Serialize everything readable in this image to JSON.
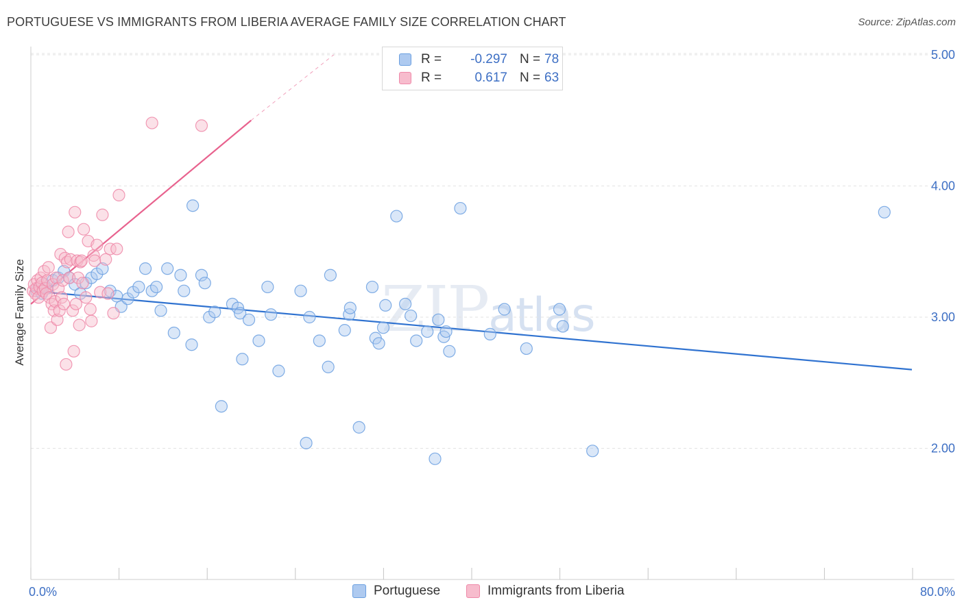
{
  "chart_data": {
    "type": "scatter",
    "title": "PORTUGUESE VS IMMIGRANTS FROM LIBERIA AVERAGE FAMILY SIZE CORRELATION CHART",
    "source": "Source: ZipAtlas.com",
    "ylabel": "Average Family Size",
    "xlabel": "",
    "xlim": [
      0,
      0.8
    ],
    "ylim": [
      1.0,
      5.15
    ],
    "x_tick_labels": [
      "0.0%",
      "80.0%"
    ],
    "y_ticks": [
      2.0,
      3.0,
      4.0,
      5.0
    ],
    "y_tick_labels": [
      "2.00",
      "3.00",
      "4.00",
      "5.00"
    ],
    "grid": true,
    "legend_position": "top-center",
    "watermark": "ZIPatlas",
    "series": [
      {
        "name": "Portuguese",
        "color": "#6a9fe0",
        "fill": "#aecaf0",
        "R": "-0.297",
        "N": "78",
        "trend": {
          "x0": 0.0,
          "y0": 3.2,
          "x1": 0.8,
          "y1": 2.6,
          "color": "#2f72d0"
        },
        "points": [
          [
            0.005,
            3.2
          ],
          [
            0.008,
            3.22
          ],
          [
            0.01,
            3.18
          ],
          [
            0.012,
            3.25
          ],
          [
            0.015,
            3.22
          ],
          [
            0.02,
            3.28
          ],
          [
            0.025,
            3.3
          ],
          [
            0.03,
            3.35
          ],
          [
            0.035,
            3.3
          ],
          [
            0.04,
            3.25
          ],
          [
            0.045,
            3.18
          ],
          [
            0.05,
            3.26
          ],
          [
            0.055,
            3.3
          ],
          [
            0.06,
            3.33
          ],
          [
            0.065,
            3.37
          ],
          [
            0.072,
            3.2
          ],
          [
            0.078,
            3.16
          ],
          [
            0.082,
            3.08
          ],
          [
            0.088,
            3.14
          ],
          [
            0.093,
            3.19
          ],
          [
            0.098,
            3.23
          ],
          [
            0.104,
            3.37
          ],
          [
            0.11,
            3.2
          ],
          [
            0.114,
            3.23
          ],
          [
            0.118,
            3.05
          ],
          [
            0.124,
            3.37
          ],
          [
            0.13,
            2.88
          ],
          [
            0.136,
            3.32
          ],
          [
            0.139,
            3.2
          ],
          [
            0.146,
            2.79
          ],
          [
            0.147,
            3.85
          ],
          [
            0.155,
            3.32
          ],
          [
            0.158,
            3.26
          ],
          [
            0.162,
            3.0
          ],
          [
            0.167,
            3.04
          ],
          [
            0.173,
            2.32
          ],
          [
            0.183,
            3.1
          ],
          [
            0.188,
            3.07
          ],
          [
            0.19,
            3.03
          ],
          [
            0.192,
            2.68
          ],
          [
            0.198,
            2.98
          ],
          [
            0.207,
            2.82
          ],
          [
            0.215,
            3.23
          ],
          [
            0.218,
            3.02
          ],
          [
            0.225,
            2.59
          ],
          [
            0.245,
            3.2
          ],
          [
            0.253,
            3.0
          ],
          [
            0.262,
            2.82
          ],
          [
            0.27,
            2.62
          ],
          [
            0.272,
            3.32
          ],
          [
            0.285,
            2.9
          ],
          [
            0.289,
            3.02
          ],
          [
            0.29,
            3.07
          ],
          [
            0.298,
            2.16
          ],
          [
            0.31,
            3.23
          ],
          [
            0.313,
            2.84
          ],
          [
            0.316,
            2.8
          ],
          [
            0.32,
            2.92
          ],
          [
            0.322,
            3.09
          ],
          [
            0.332,
            3.77
          ],
          [
            0.34,
            3.1
          ],
          [
            0.345,
            3.01
          ],
          [
            0.35,
            2.82
          ],
          [
            0.36,
            2.89
          ],
          [
            0.367,
            1.92
          ],
          [
            0.37,
            2.98
          ],
          [
            0.375,
            2.85
          ],
          [
            0.377,
            2.89
          ],
          [
            0.38,
            2.74
          ],
          [
            0.39,
            3.83
          ],
          [
            0.417,
            2.87
          ],
          [
            0.43,
            3.06
          ],
          [
            0.45,
            2.76
          ],
          [
            0.25,
            2.04
          ],
          [
            0.48,
            3.06
          ],
          [
            0.483,
            2.93
          ],
          [
            0.51,
            1.98
          ],
          [
            0.775,
            3.8
          ]
        ]
      },
      {
        "name": "Immigrants from Liberia",
        "color": "#ef88a8",
        "fill": "#f7bccd",
        "R": "0.617",
        "N": "63",
        "trend": {
          "x0": 0.0,
          "y0": 3.1,
          "x1": 0.2,
          "y1": 4.5,
          "color": "#e8628e",
          "dash_x1": 0.275,
          "dash_y1": 5.0
        },
        "points": [
          [
            0.002,
            3.2
          ],
          [
            0.003,
            3.25
          ],
          [
            0.004,
            3.18
          ],
          [
            0.005,
            3.22
          ],
          [
            0.006,
            3.28
          ],
          [
            0.007,
            3.15
          ],
          [
            0.008,
            3.23
          ],
          [
            0.009,
            3.3
          ],
          [
            0.01,
            3.26
          ],
          [
            0.011,
            3.2
          ],
          [
            0.012,
            3.35
          ],
          [
            0.013,
            3.22
          ],
          [
            0.014,
            3.18
          ],
          [
            0.015,
            3.28
          ],
          [
            0.016,
            3.38
          ],
          [
            0.017,
            3.15
          ],
          [
            0.018,
            2.92
          ],
          [
            0.019,
            3.1
          ],
          [
            0.02,
            3.25
          ],
          [
            0.021,
            3.05
          ],
          [
            0.022,
            3.12
          ],
          [
            0.023,
            3.3
          ],
          [
            0.024,
            2.98
          ],
          [
            0.025,
            3.22
          ],
          [
            0.026,
            3.05
          ],
          [
            0.027,
            3.48
          ],
          [
            0.028,
            3.15
          ],
          [
            0.029,
            3.28
          ],
          [
            0.03,
            3.1
          ],
          [
            0.031,
            3.45
          ],
          [
            0.032,
            2.64
          ],
          [
            0.033,
            3.42
          ],
          [
            0.034,
            3.65
          ],
          [
            0.035,
            3.3
          ],
          [
            0.036,
            3.44
          ],
          [
            0.038,
            3.05
          ],
          [
            0.039,
            2.74
          ],
          [
            0.04,
            3.8
          ],
          [
            0.041,
            3.1
          ],
          [
            0.042,
            3.43
          ],
          [
            0.043,
            3.3
          ],
          [
            0.044,
            2.94
          ],
          [
            0.045,
            3.42
          ],
          [
            0.047,
            3.26
          ],
          [
            0.048,
            3.67
          ],
          [
            0.05,
            3.15
          ],
          [
            0.052,
            3.58
          ],
          [
            0.054,
            3.06
          ],
          [
            0.055,
            2.97
          ],
          [
            0.057,
            3.47
          ],
          [
            0.058,
            3.43
          ],
          [
            0.06,
            3.55
          ],
          [
            0.063,
            3.19
          ],
          [
            0.065,
            3.78
          ],
          [
            0.068,
            3.44
          ],
          [
            0.07,
            3.18
          ],
          [
            0.072,
            3.52
          ],
          [
            0.075,
            3.03
          ],
          [
            0.078,
            3.52
          ],
          [
            0.08,
            3.93
          ],
          [
            0.11,
            4.48
          ],
          [
            0.155,
            4.46
          ],
          [
            0.046,
            3.43
          ]
        ]
      }
    ]
  }
}
